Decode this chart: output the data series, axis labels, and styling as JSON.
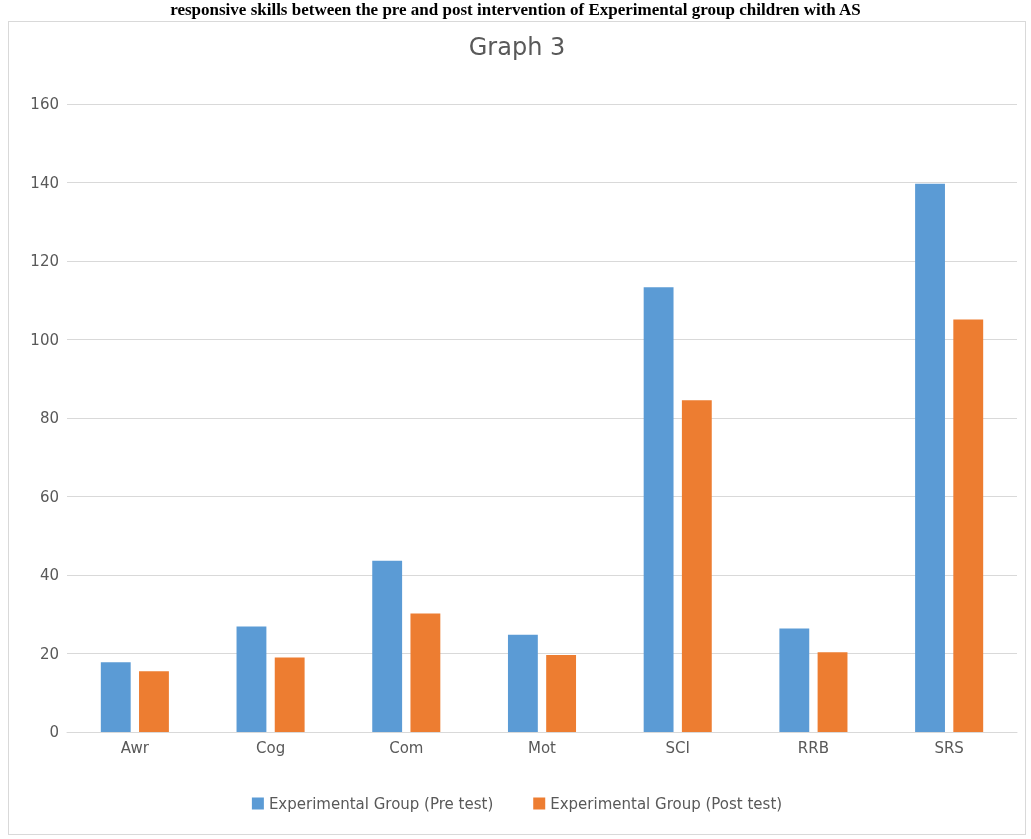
{
  "chart_data": {
    "type": "bar",
    "title": "Graph 3",
    "annotations": [
      "responsive skills between the pre and post intervention of Experimental group children with AS"
    ],
    "categories": [
      "Awr",
      "Cog",
      "Com",
      "Mot",
      "SCI",
      "RRB",
      "SRS"
    ],
    "series": [
      {
        "name": "Experimental Group (Pre test)",
        "color": "#5b9bd5",
        "values": [
          17.8,
          26.9,
          43.6,
          24.8,
          113.3,
          26.4,
          139.7
        ]
      },
      {
        "name": "Experimental Group (Post test)",
        "color": "#ed7d31",
        "values": [
          15.5,
          19,
          30.2,
          19.6,
          84.5,
          20.3,
          105.1
        ]
      }
    ],
    "ylim": [
      0,
      160
    ],
    "yticks": [
      0,
      20,
      40,
      60,
      80,
      100,
      120,
      140,
      160
    ],
    "grid": "y",
    "legend": "bottom"
  }
}
